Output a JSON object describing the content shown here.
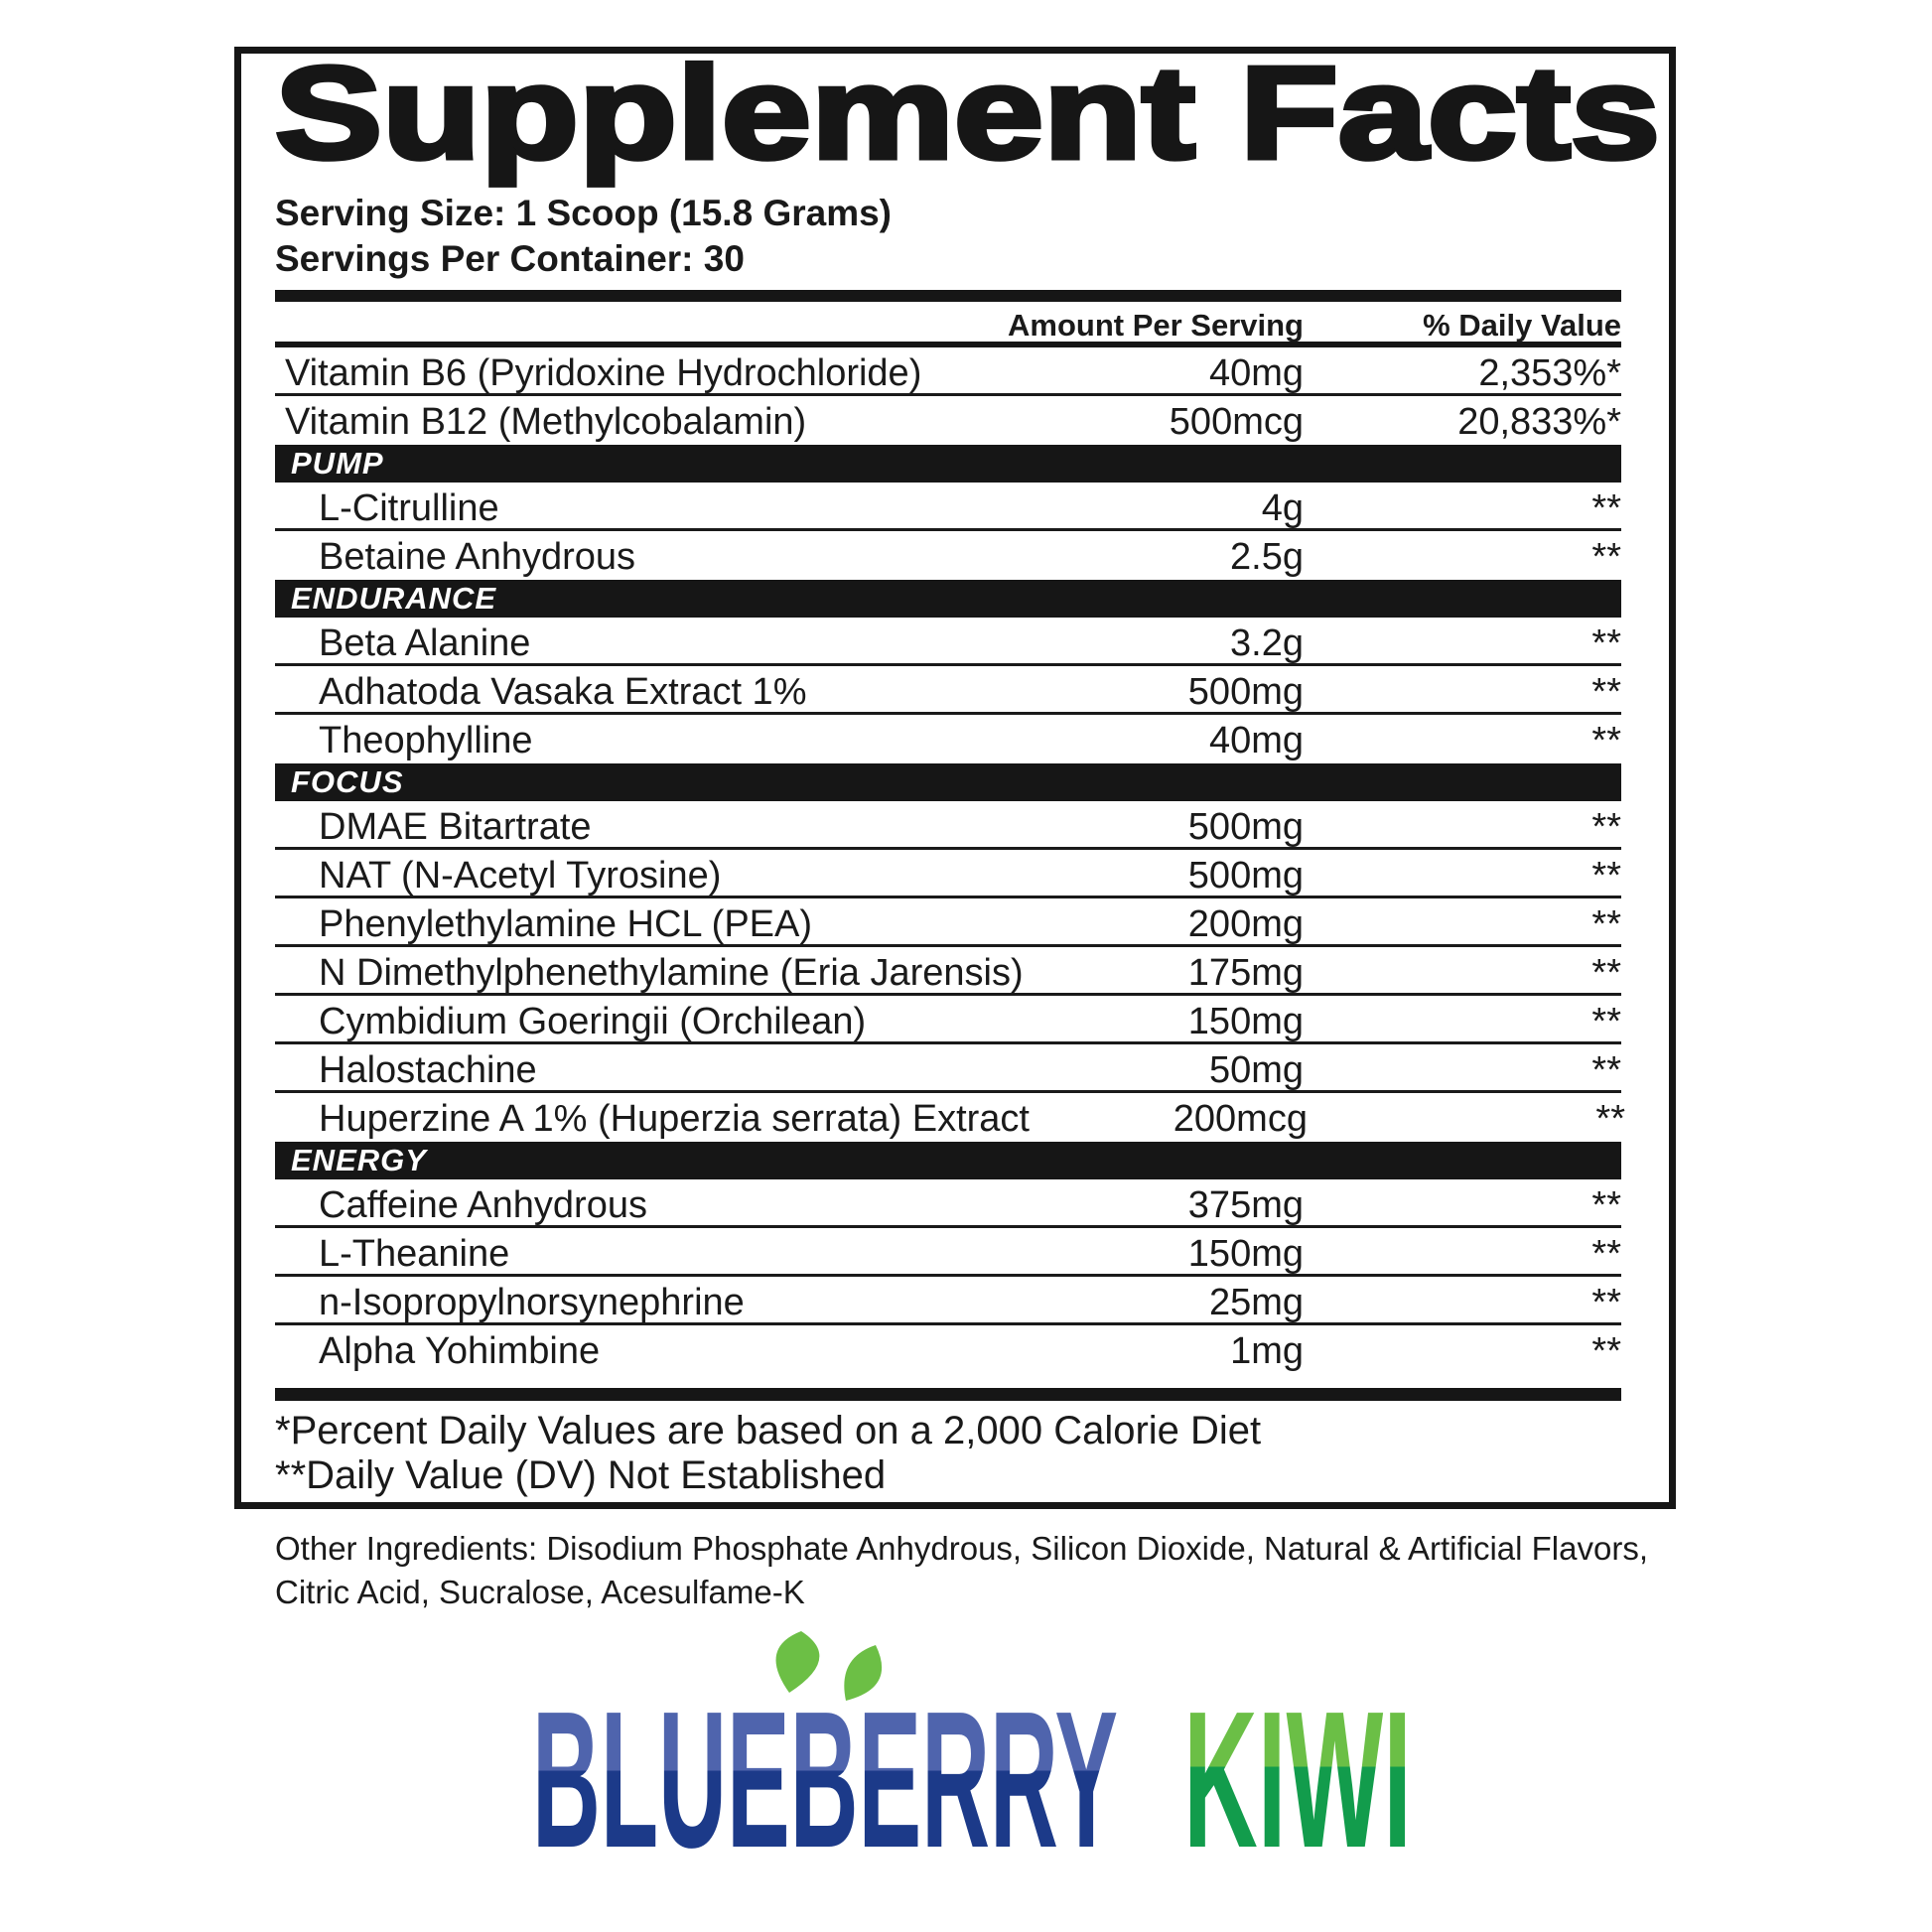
{
  "title": "Supplement Facts",
  "serving": {
    "size_line": "Serving Size: 1 Scoop (15.8 Grams)",
    "per_container_line": "Servings Per Container: 30"
  },
  "table": {
    "amount_header": "Amount Per Serving",
    "dv_header": "% Daily Value",
    "rows": [
      {
        "type": "item",
        "name": "Vitamin B6 (Pyridoxine Hydrochloride)",
        "amount": "40mg",
        "dv": "2,353%*",
        "indent": false,
        "last": false
      },
      {
        "type": "item",
        "name": "Vitamin B12 (Methylcobalamin)",
        "amount": "500mcg",
        "dv": "20,833%*",
        "indent": false,
        "last": true
      },
      {
        "type": "section",
        "label": "PUMP"
      },
      {
        "type": "item",
        "name": "L-Citrulline",
        "amount": "4g",
        "dv": "**",
        "indent": true,
        "last": false
      },
      {
        "type": "item",
        "name": "Betaine Anhydrous",
        "amount": "2.5g",
        "dv": "**",
        "indent": true,
        "last": true
      },
      {
        "type": "section",
        "label": "ENDURANCE"
      },
      {
        "type": "item",
        "name": "Beta Alanine",
        "amount": "3.2g",
        "dv": "**",
        "indent": true,
        "last": false
      },
      {
        "type": "item",
        "name": "Adhatoda Vasaka Extract 1%",
        "amount": "500mg",
        "dv": "**",
        "indent": true,
        "last": false
      },
      {
        "type": "item",
        "name": "Theophylline",
        "amount": "40mg",
        "dv": "**",
        "indent": true,
        "last": true
      },
      {
        "type": "section",
        "label": "FOCUS"
      },
      {
        "type": "item",
        "name": "DMAE Bitartrate",
        "amount": "500mg",
        "dv": "**",
        "indent": true,
        "last": false
      },
      {
        "type": "item",
        "name": "NAT (N-Acetyl Tyrosine)",
        "amount": "500mg",
        "dv": "**",
        "indent": true,
        "last": false
      },
      {
        "type": "item",
        "name": "Phenylethylamine HCL (PEA)",
        "amount": "200mg",
        "dv": "**",
        "indent": true,
        "last": false
      },
      {
        "type": "item",
        "name": "N Dimethylphenethylamine (Eria Jarensis)",
        "amount": "175mg",
        "dv": "**",
        "indent": true,
        "last": false
      },
      {
        "type": "item",
        "name": "Cymbidium Goeringii (Orchilean)",
        "amount": "150mg",
        "dv": "**",
        "indent": true,
        "last": false
      },
      {
        "type": "item",
        "name": "Halostachine",
        "amount": "50mg",
        "dv": "**",
        "indent": true,
        "last": false
      },
      {
        "type": "item",
        "name": "Huperzine A 1% (Huperzia serrata) Extract",
        "amount": "200mcg",
        "dv": "**",
        "indent": true,
        "last": true
      },
      {
        "type": "section",
        "label": "ENERGY"
      },
      {
        "type": "item",
        "name": "Caffeine Anhydrous",
        "amount": "375mg",
        "dv": "**",
        "indent": true,
        "last": false
      },
      {
        "type": "item",
        "name": "L-Theanine",
        "amount": "150mg",
        "dv": "**",
        "indent": true,
        "last": false
      },
      {
        "type": "item",
        "name": "n-Isopropylnorsynephrine",
        "amount": "25mg",
        "dv": "**",
        "indent": true,
        "last": false
      },
      {
        "type": "item",
        "name": "Alpha Yohimbine",
        "amount": "1mg",
        "dv": "**",
        "indent": true,
        "last": true
      }
    ]
  },
  "footnotes": {
    "line1": "*Percent Daily Values are based on a 2,000 Calorie Diet",
    "line2": "**Daily Value (DV) Not Established"
  },
  "other_ingredients": "Other Ingredients: Disodium Phosphate Anhydrous, Silicon Dioxide, Natural & Artificial Flavors, Citric Acid, Sucralose, Acesulfame-K",
  "flavor": {
    "word1": "BLUEBERRY",
    "word2": "KIWI",
    "colors": {
      "leaf": "#6cbf45",
      "blue_light": "#4f64ad",
      "blue_dark": "#1c3a89",
      "green_light": "#6bbf46",
      "green_dark": "#129c4c"
    }
  }
}
